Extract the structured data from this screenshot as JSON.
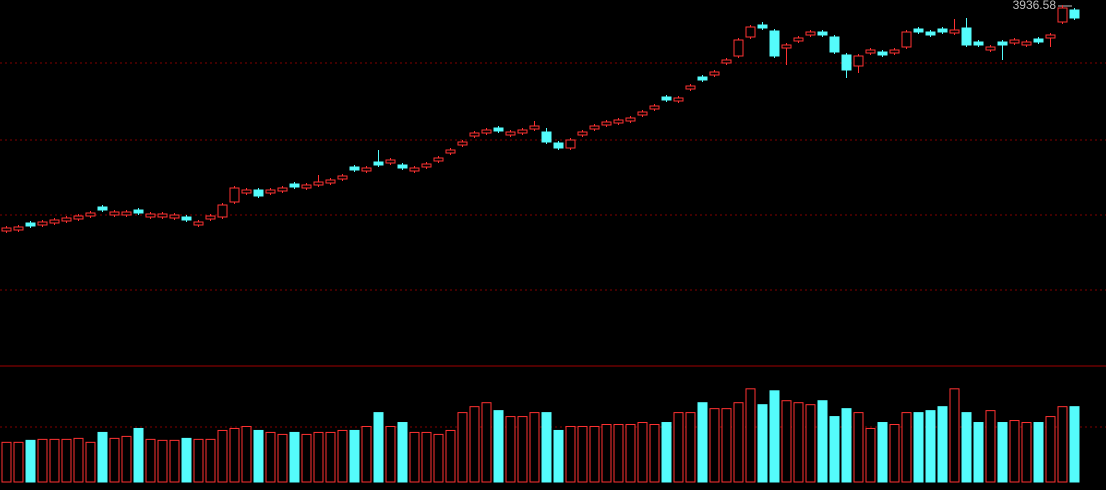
{
  "chart_data": {
    "type": "candlestick",
    "high_label": "3936.58",
    "up_color": "#ff3232",
    "down_color": "#54fcfc",
    "ylim": [
      2497,
      3957
    ],
    "volume_ylim": [
      0,
      115
    ],
    "open": [
      3033,
      3037,
      3065,
      3057,
      3065,
      3073,
      3081,
      3093,
      3129,
      3097,
      3097,
      3117,
      3089,
      3089,
      3085,
      3089,
      3057,
      3081,
      3089,
      3149,
      3185,
      3197,
      3185,
      3193,
      3221,
      3205,
      3217,
      3225,
      3241,
      3289,
      3273,
      3309,
      3305,
      3297,
      3273,
      3289,
      3313,
      3345,
      3377,
      3413,
      3425,
      3445,
      3417,
      3425,
      3441,
      3429,
      3385,
      3365,
      3417,
      3441,
      3457,
      3465,
      3473,
      3497,
      3521,
      3569,
      3553,
      3601,
      3649,
      3657,
      3705,
      3733,
      3809,
      3857,
      3833,
      3765,
      3793,
      3817,
      3829,
      3809,
      3737,
      3693,
      3745,
      3749,
      3745,
      3769,
      3841,
      3829,
      3841,
      3825,
      3845,
      3789,
      3757,
      3789,
      3785,
      3777,
      3801,
      3805,
      3869,
      3917
    ],
    "high": [
      3053,
      3057,
      3073,
      3077,
      3085,
      3093,
      3101,
      3113,
      3137,
      3117,
      3117,
      3125,
      3109,
      3109,
      3105,
      3097,
      3077,
      3101,
      3145,
      3213,
      3205,
      3205,
      3205,
      3213,
      3229,
      3225,
      3257,
      3245,
      3261,
      3297,
      3293,
      3357,
      3325,
      3305,
      3293,
      3309,
      3333,
      3365,
      3397,
      3433,
      3445,
      3453,
      3437,
      3445,
      3473,
      3445,
      3393,
      3405,
      3437,
      3461,
      3477,
      3485,
      3493,
      3517,
      3541,
      3577,
      3573,
      3621,
      3657,
      3677,
      3725,
      3805,
      3857,
      3869,
      3841,
      3785,
      3813,
      3837,
      3837,
      3817,
      3745,
      3741,
      3765,
      3757,
      3765,
      3837,
      3849,
      3837,
      3849,
      3881,
      3885,
      3797,
      3777,
      3797,
      3805,
      3797,
      3809,
      3825,
      3936.58,
      3925
    ],
    "low": [
      3025,
      3029,
      3045,
      3049,
      3057,
      3065,
      3073,
      3085,
      3109,
      3089,
      3089,
      3097,
      3081,
      3081,
      3077,
      3069,
      3049,
      3073,
      3081,
      3141,
      3177,
      3165,
      3177,
      3185,
      3201,
      3197,
      3209,
      3217,
      3233,
      3269,
      3265,
      3289,
      3297,
      3277,
      3265,
      3281,
      3305,
      3337,
      3369,
      3405,
      3417,
      3425,
      3409,
      3417,
      3433,
      3381,
      3357,
      3357,
      3409,
      3433,
      3449,
      3457,
      3465,
      3489,
      3513,
      3549,
      3545,
      3593,
      3629,
      3649,
      3697,
      3725,
      3801,
      3837,
      3725,
      3697,
      3785,
      3809,
      3809,
      3741,
      3645,
      3665,
      3737,
      3729,
      3737,
      3761,
      3821,
      3809,
      3821,
      3817,
      3769,
      3769,
      3749,
      3717,
      3777,
      3769,
      3781,
      3769,
      3861,
      3877
    ],
    "close": [
      3045,
      3049,
      3053,
      3069,
      3077,
      3085,
      3093,
      3105,
      3117,
      3109,
      3109,
      3105,
      3101,
      3101,
      3097,
      3077,
      3069,
      3093,
      3137,
      3205,
      3197,
      3173,
      3197,
      3205,
      3209,
      3217,
      3229,
      3237,
      3253,
      3277,
      3285,
      3297,
      3317,
      3285,
      3285,
      3301,
      3325,
      3357,
      3389,
      3425,
      3437,
      3433,
      3429,
      3437,
      3453,
      3389,
      3365,
      3397,
      3429,
      3453,
      3469,
      3477,
      3485,
      3509,
      3533,
      3557,
      3565,
      3613,
      3637,
      3669,
      3717,
      3797,
      3849,
      3845,
      3733,
      3777,
      3805,
      3829,
      3817,
      3749,
      3677,
      3733,
      3757,
      3737,
      3757,
      3829,
      3829,
      3817,
      3829,
      3837,
      3777,
      3777,
      3769,
      3777,
      3797,
      3789,
      3789,
      3817,
      3925,
      3885
    ],
    "volume": [
      40,
      40,
      42,
      43,
      43,
      43,
      44,
      40,
      50,
      44,
      46,
      54,
      43,
      42,
      42,
      44,
      43,
      43,
      52,
      54,
      56,
      52,
      50,
      48,
      50,
      48,
      50,
      50,
      52,
      52,
      56,
      70,
      56,
      60,
      50,
      50,
      48,
      52,
      70,
      76,
      80,
      72,
      66,
      66,
      70,
      70,
      52,
      56,
      56,
      56,
      58,
      58,
      58,
      60,
      58,
      60,
      70,
      70,
      80,
      74,
      74,
      80,
      94,
      78,
      92,
      82,
      80,
      78,
      82,
      66,
      74,
      70,
      54,
      60,
      58,
      70,
      70,
      72,
      76,
      94,
      70,
      60,
      72,
      60,
      62,
      60,
      60,
      66,
      76,
      76
    ]
  }
}
